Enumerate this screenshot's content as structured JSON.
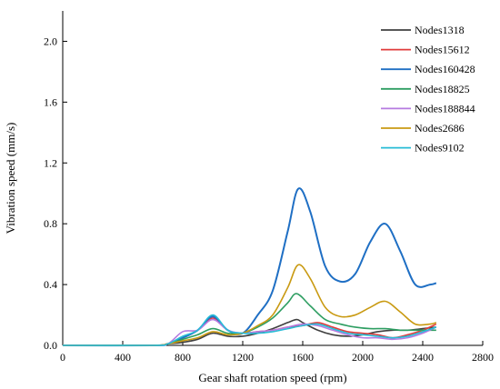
{
  "chart_data": {
    "type": "line",
    "xlabel": "Gear shaft rotation speed (rpm)",
    "ylabel": "Vibration speed (mm/s)",
    "xlim": [
      0,
      2800
    ],
    "ylim": [
      0,
      2.2
    ],
    "xticks": [
      "0",
      "400",
      "800",
      "1200",
      "1600",
      "2000",
      "2400",
      "2800"
    ],
    "yticks": [
      "0.0",
      "0.4",
      "0.8",
      "1.2",
      "1.6",
      "2.0"
    ],
    "grid": false,
    "legend_position": "top-right",
    "series": [
      {
        "name": "Nodes1318",
        "color": "#404040",
        "points": [
          [
            0,
            0
          ],
          [
            600,
            0
          ],
          [
            700,
            0.01
          ],
          [
            800,
            0.02
          ],
          [
            900,
            0.04
          ],
          [
            1000,
            0.08
          ],
          [
            1100,
            0.06
          ],
          [
            1200,
            0.06
          ],
          [
            1300,
            0.08
          ],
          [
            1400,
            0.11
          ],
          [
            1500,
            0.15
          ],
          [
            1560,
            0.17
          ],
          [
            1600,
            0.15
          ],
          [
            1700,
            0.1
          ],
          [
            1800,
            0.07
          ],
          [
            1900,
            0.06
          ],
          [
            2000,
            0.07
          ],
          [
            2100,
            0.09
          ],
          [
            2200,
            0.1
          ],
          [
            2300,
            0.1
          ],
          [
            2400,
            0.11
          ],
          [
            2490,
            0.12
          ]
        ]
      },
      {
        "name": "Nodes15612",
        "color": "#e03c3c",
        "points": [
          [
            0,
            0
          ],
          [
            600,
            0
          ],
          [
            700,
            0.01
          ],
          [
            800,
            0.05
          ],
          [
            900,
            0.1
          ],
          [
            1000,
            0.18
          ],
          [
            1100,
            0.1
          ],
          [
            1200,
            0.08
          ],
          [
            1300,
            0.09
          ],
          [
            1400,
            0.1
          ],
          [
            1500,
            0.12
          ],
          [
            1600,
            0.13
          ],
          [
            1700,
            0.15
          ],
          [
            1800,
            0.12
          ],
          [
            1900,
            0.09
          ],
          [
            2000,
            0.08
          ],
          [
            2100,
            0.07
          ],
          [
            2200,
            0.05
          ],
          [
            2300,
            0.07
          ],
          [
            2400,
            0.1
          ],
          [
            2490,
            0.14
          ]
        ]
      },
      {
        "name": "Nodes160428",
        "color": "#1f6fc4",
        "points": [
          [
            0,
            0
          ],
          [
            600,
            0
          ],
          [
            700,
            0.01
          ],
          [
            800,
            0.05
          ],
          [
            900,
            0.1
          ],
          [
            1000,
            0.19
          ],
          [
            1100,
            0.1
          ],
          [
            1200,
            0.08
          ],
          [
            1300,
            0.2
          ],
          [
            1400,
            0.36
          ],
          [
            1500,
            0.75
          ],
          [
            1570,
            1.03
          ],
          [
            1650,
            0.88
          ],
          [
            1750,
            0.52
          ],
          [
            1850,
            0.42
          ],
          [
            1950,
            0.47
          ],
          [
            2050,
            0.68
          ],
          [
            2150,
            0.8
          ],
          [
            2250,
            0.62
          ],
          [
            2350,
            0.4
          ],
          [
            2450,
            0.4
          ],
          [
            2490,
            0.41
          ]
        ]
      },
      {
        "name": "Nodes18825",
        "color": "#2e9e62",
        "points": [
          [
            0,
            0
          ],
          [
            600,
            0
          ],
          [
            700,
            0.01
          ],
          [
            800,
            0.04
          ],
          [
            900,
            0.07
          ],
          [
            1000,
            0.11
          ],
          [
            1100,
            0.08
          ],
          [
            1200,
            0.08
          ],
          [
            1300,
            0.12
          ],
          [
            1400,
            0.18
          ],
          [
            1500,
            0.28
          ],
          [
            1560,
            0.34
          ],
          [
            1650,
            0.26
          ],
          [
            1750,
            0.17
          ],
          [
            1850,
            0.14
          ],
          [
            1950,
            0.12
          ],
          [
            2050,
            0.11
          ],
          [
            2150,
            0.11
          ],
          [
            2250,
            0.1
          ],
          [
            2350,
            0.1
          ],
          [
            2450,
            0.1
          ],
          [
            2490,
            0.1
          ]
        ]
      },
      {
        "name": "Nodes188844",
        "color": "#b67be0",
        "points": [
          [
            0,
            0
          ],
          [
            600,
            0
          ],
          [
            700,
            0.01
          ],
          [
            800,
            0.09
          ],
          [
            900,
            0.1
          ],
          [
            1000,
            0.17
          ],
          [
            1100,
            0.1
          ],
          [
            1200,
            0.08
          ],
          [
            1300,
            0.09
          ],
          [
            1400,
            0.1
          ],
          [
            1500,
            0.12
          ],
          [
            1600,
            0.14
          ],
          [
            1700,
            0.13
          ],
          [
            1800,
            0.1
          ],
          [
            1900,
            0.07
          ],
          [
            2000,
            0.05
          ],
          [
            2100,
            0.05
          ],
          [
            2200,
            0.04
          ],
          [
            2300,
            0.05
          ],
          [
            2400,
            0.08
          ],
          [
            2490,
            0.12
          ]
        ]
      },
      {
        "name": "Nodes2686",
        "color": "#c99a12",
        "points": [
          [
            0,
            0
          ],
          [
            600,
            0
          ],
          [
            700,
            0.01
          ],
          [
            800,
            0.03
          ],
          [
            900,
            0.05
          ],
          [
            1000,
            0.09
          ],
          [
            1100,
            0.07
          ],
          [
            1200,
            0.08
          ],
          [
            1300,
            0.13
          ],
          [
            1400,
            0.2
          ],
          [
            1500,
            0.38
          ],
          [
            1570,
            0.53
          ],
          [
            1650,
            0.44
          ],
          [
            1750,
            0.25
          ],
          [
            1850,
            0.19
          ],
          [
            1950,
            0.2
          ],
          [
            2050,
            0.25
          ],
          [
            2150,
            0.29
          ],
          [
            2250,
            0.22
          ],
          [
            2350,
            0.14
          ],
          [
            2450,
            0.14
          ],
          [
            2490,
            0.15
          ]
        ]
      },
      {
        "name": "Nodes9102",
        "color": "#27bcd6",
        "points": [
          [
            0,
            0
          ],
          [
            600,
            0
          ],
          [
            700,
            0.01
          ],
          [
            800,
            0.06
          ],
          [
            900,
            0.1
          ],
          [
            1000,
            0.2
          ],
          [
            1100,
            0.1
          ],
          [
            1200,
            0.08
          ],
          [
            1300,
            0.08
          ],
          [
            1400,
            0.09
          ],
          [
            1500,
            0.11
          ],
          [
            1600,
            0.13
          ],
          [
            1700,
            0.14
          ],
          [
            1800,
            0.11
          ],
          [
            1900,
            0.08
          ],
          [
            2000,
            0.07
          ],
          [
            2100,
            0.06
          ],
          [
            2200,
            0.05
          ],
          [
            2300,
            0.06
          ],
          [
            2400,
            0.09
          ],
          [
            2490,
            0.12
          ]
        ]
      }
    ]
  }
}
